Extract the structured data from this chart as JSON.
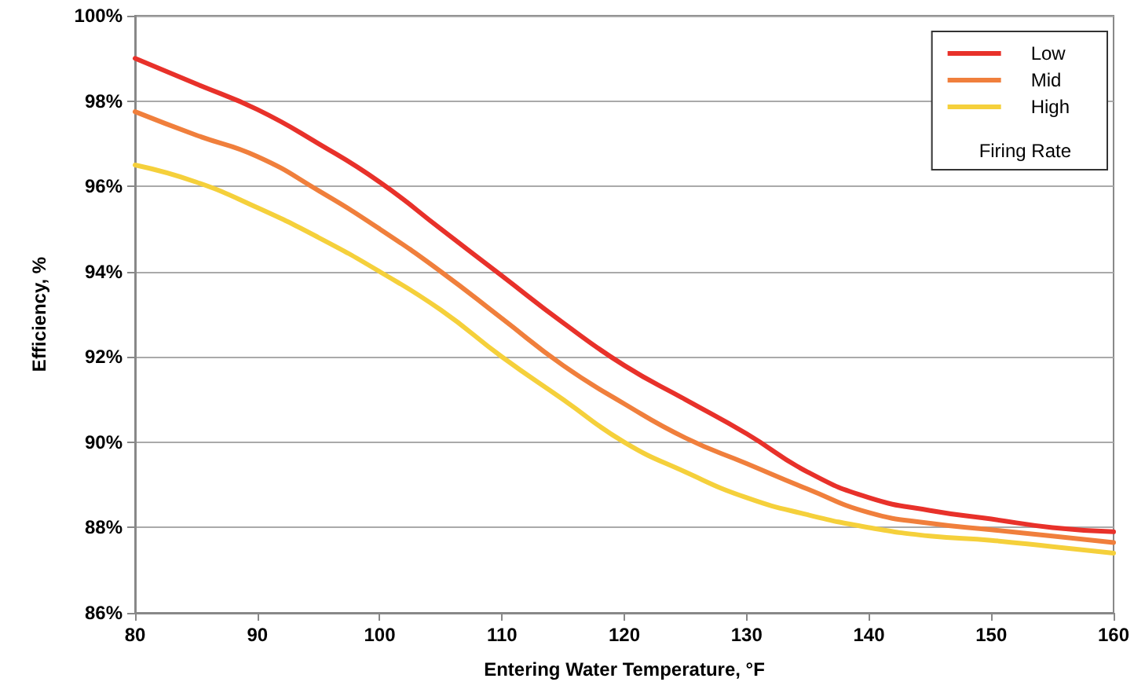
{
  "chart_data": {
    "type": "line",
    "xlabel": "Entering Water Temperature, °F",
    "ylabel": "Efficiency, %",
    "legend_title": "Firing Rate",
    "x": [
      80,
      85,
      90,
      95,
      100,
      105,
      110,
      115,
      120,
      125,
      130,
      135,
      140,
      145,
      150,
      155,
      160
    ],
    "series": [
      {
        "name": "Low",
        "color": "#e8312a",
        "values": [
          99.0,
          98.4,
          97.8,
          97.0,
          96.1,
          95.0,
          93.9,
          92.8,
          91.8,
          91.0,
          90.2,
          89.3,
          88.7,
          88.4,
          88.2,
          88.0,
          87.9
        ]
      },
      {
        "name": "Mid",
        "color": "#f07f3c",
        "values": [
          97.75,
          97.2,
          96.7,
          95.9,
          95.0,
          94.0,
          92.9,
          91.8,
          90.9,
          90.1,
          89.5,
          88.9,
          88.35,
          88.1,
          87.95,
          87.8,
          87.65
        ]
      },
      {
        "name": "High",
        "color": "#f5d03b",
        "values": [
          96.5,
          96.1,
          95.5,
          94.8,
          94.0,
          93.1,
          92.0,
          91.0,
          90.0,
          89.3,
          88.7,
          88.3,
          88.0,
          87.8,
          87.7,
          87.55,
          87.4
        ]
      }
    ],
    "xlim": [
      80,
      160
    ],
    "xticks": [
      80,
      90,
      100,
      110,
      120,
      130,
      140,
      150,
      160
    ],
    "ylim": [
      86,
      100
    ],
    "yticks": [
      {
        "value": 86,
        "label": "86%"
      },
      {
        "value": 88,
        "label": "88%"
      },
      {
        "value": 90,
        "label": "90%"
      },
      {
        "value": 92,
        "label": "92%"
      },
      {
        "value": 94,
        "label": "94%"
      },
      {
        "value": 96,
        "label": "96%"
      },
      {
        "value": 98,
        "label": "98%"
      },
      {
        "value": 100,
        "label": "100%"
      }
    ],
    "grid": "y",
    "legend": "top right",
    "marker": "none",
    "line_style": "solid"
  }
}
